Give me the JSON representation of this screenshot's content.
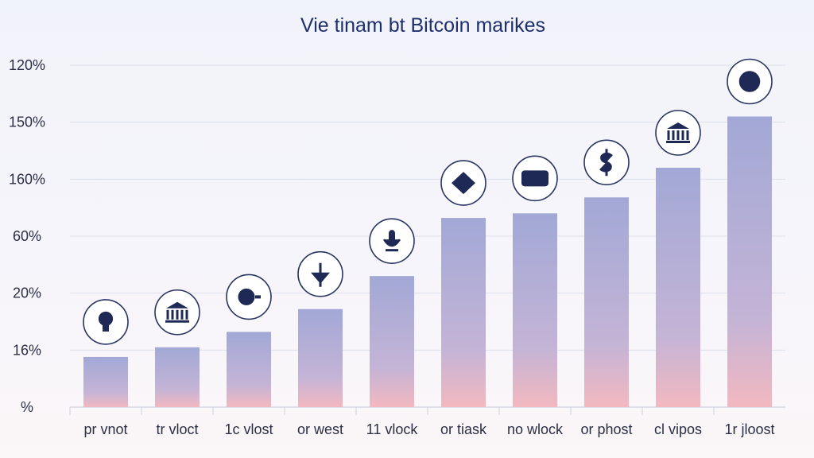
{
  "chart_data": {
    "type": "bar",
    "title": "Vie tinam bt Bitcoin marikes",
    "xlabel": "",
    "ylabel": "",
    "y_tick_labels": [
      "%",
      "16%",
      "20%",
      "60%",
      "160%",
      "150%",
      "120%"
    ],
    "categories": [
      "pr vnot",
      "tr vloct",
      "1c vlost",
      "or west",
      "11 vlock",
      "or tiask",
      "no wlock",
      "or phost",
      "cl vipos",
      "1r jloost"
    ],
    "values": [
      0.88,
      1.05,
      1.32,
      1.72,
      2.3,
      3.32,
      3.4,
      3.68,
      4.2,
      5.1
    ],
    "ylim": [
      0,
      6
    ],
    "grid": true,
    "legend": "none",
    "icons": [
      "lightbulb-icon",
      "bank-icon",
      "coin-icon",
      "shield-arrow-icon",
      "microphone-icon",
      "diamond-icon",
      "wallet-icon",
      "dollar-sign-icon",
      "bank-building-icon",
      "bitcoin-ring-icon"
    ],
    "colors": {
      "bar_top": "#a2a8d6",
      "bar_bottom": "#f3b8c0",
      "title": "#1e2f6e",
      "grid": "#dcdfea"
    }
  }
}
